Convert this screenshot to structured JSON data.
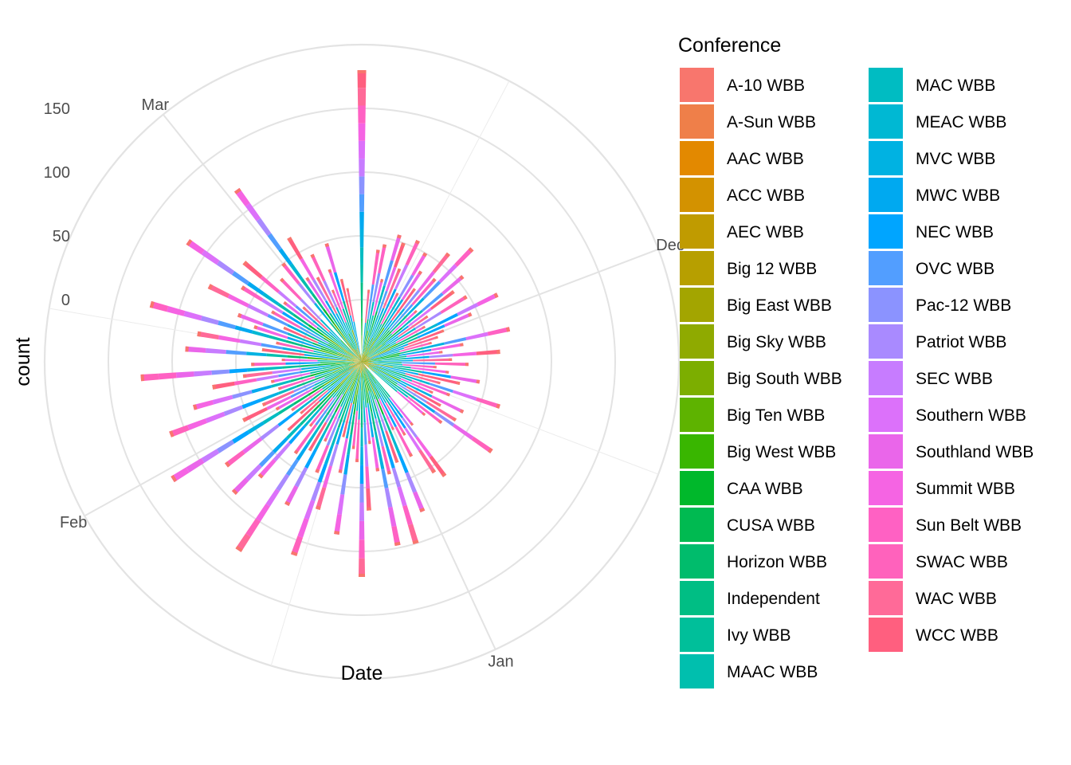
{
  "chart_data": {
    "type": "bar",
    "coord": "polar",
    "position": "stacked",
    "xlabel": "Date",
    "ylabel": "count",
    "angle_ticks": [
      "Dec",
      "Jan",
      "Feb",
      "Mar"
    ],
    "radial_ticks": [
      0,
      50,
      100,
      150
    ],
    "ylim": [
      -70,
      200
    ],
    "grid": true,
    "legend": {
      "title": "Conference",
      "placement": "right",
      "columns": 2,
      "entries": [
        {
          "name": "A-10 WBB",
          "color": "#F8766D"
        },
        {
          "name": "A-Sun WBB",
          "color": "#EF7F49"
        },
        {
          "name": "AAC WBB",
          "color": "#E38900"
        },
        {
          "name": "ACC WBB",
          "color": "#D39200"
        },
        {
          "name": "AEC WBB",
          "color": "#C09B00"
        },
        {
          "name": "Big 12 WBB",
          "color": "#B79F00"
        },
        {
          "name": "Big East WBB",
          "color": "#A3A500"
        },
        {
          "name": "Big Sky WBB",
          "color": "#8FAA00"
        },
        {
          "name": "Big South WBB",
          "color": "#7CAE00"
        },
        {
          "name": "Big Ten WBB",
          "color": "#5EB300"
        },
        {
          "name": "Big West WBB",
          "color": "#39B600"
        },
        {
          "name": "CAA WBB",
          "color": "#00B82B"
        },
        {
          "name": "CUSA WBB",
          "color": "#00BA51"
        },
        {
          "name": "Horizon WBB",
          "color": "#00BC6C"
        },
        {
          "name": "Independent",
          "color": "#00BE84"
        },
        {
          "name": "Ivy WBB",
          "color": "#00BF9A"
        },
        {
          "name": "MAAC WBB",
          "color": "#00BFAE"
        },
        {
          "name": "MAC WBB",
          "color": "#00BCC2"
        },
        {
          "name": "MEAC WBB",
          "color": "#00B8D3"
        },
        {
          "name": "MVC WBB",
          "color": "#00B2E2"
        },
        {
          "name": "MWC WBB",
          "color": "#00A9F0"
        },
        {
          "name": "NEC WBB",
          "color": "#00A5FF"
        },
        {
          "name": "OVC WBB",
          "color": "#529EFF"
        },
        {
          "name": "Pac-12 WBB",
          "color": "#8B93FF"
        },
        {
          "name": "Patriot WBB",
          "color": "#A98AFF"
        },
        {
          "name": "SEC WBB",
          "color": "#C77CFF"
        },
        {
          "name": "Southern WBB",
          "color": "#DC71FA"
        },
        {
          "name": "Southland WBB",
          "color": "#EA66EA"
        },
        {
          "name": "Summit WBB",
          "color": "#F564E3"
        },
        {
          "name": "Sun Belt WBB",
          "color": "#FF61C3"
        },
        {
          "name": "SWAC WBB",
          "color": "#FF62BC"
        },
        {
          "name": "WAC WBB",
          "color": "#FF6A98"
        },
        {
          "name": "WCC WBB",
          "color": "#FF5F7F"
        }
      ]
    },
    "day_totals": [
      {
        "date": "Nov 6",
        "count": 180
      },
      {
        "date": "Nov 8",
        "count": 8
      },
      {
        "date": "Nov 9",
        "count": 40
      },
      {
        "date": "Nov 10",
        "count": 45
      },
      {
        "date": "Nov 11",
        "count": 18
      },
      {
        "date": "Nov 12",
        "count": 55
      },
      {
        "date": "Nov 13",
        "count": 50
      },
      {
        "date": "Nov 14",
        "count": 30
      },
      {
        "date": "Nov 15",
        "count": 56
      },
      {
        "date": "Nov 16",
        "count": 12
      },
      {
        "date": "Nov 17",
        "count": 50
      },
      {
        "date": "Nov 18",
        "count": 36
      },
      {
        "date": "Nov 19",
        "count": 22
      },
      {
        "date": "Nov 20",
        "count": 60
      },
      {
        "date": "Nov 21",
        "count": 38
      },
      {
        "date": "Nov 22",
        "count": 75
      },
      {
        "date": "Nov 23",
        "count": 10
      },
      {
        "date": "Nov 24",
        "count": 55
      },
      {
        "date": "Nov 25",
        "count": 42
      },
      {
        "date": "Nov 26",
        "count": 14
      },
      {
        "date": "Nov 27",
        "count": 48
      },
      {
        "date": "Nov 28",
        "count": 8
      },
      {
        "date": "Nov 29",
        "count": 70
      },
      {
        "date": "Nov 30",
        "count": 45
      },
      {
        "date": "Dec 1",
        "count": 20
      },
      {
        "date": "Dec 2",
        "count": 14
      },
      {
        "date": "Dec 3",
        "count": 8
      },
      {
        "date": "Dec 4",
        "count": 70
      },
      {
        "date": "Dec 5",
        "count": 32
      },
      {
        "date": "Dec 6",
        "count": 15
      },
      {
        "date": "Dec 7",
        "count": 60
      },
      {
        "date": "Dec 8",
        "count": 22
      },
      {
        "date": "Dec 9",
        "count": 35
      },
      {
        "date": "Dec 10",
        "count": 10
      },
      {
        "date": "Dec 11",
        "count": 20
      },
      {
        "date": "Dec 12",
        "count": 45
      },
      {
        "date": "Dec 13",
        "count": 30
      },
      {
        "date": "Dec 14",
        "count": 15
      },
      {
        "date": "Dec 15",
        "count": 65
      },
      {
        "date": "Dec 16",
        "count": 25
      },
      {
        "date": "Dec 17",
        "count": 12
      },
      {
        "date": "Dec 18",
        "count": 40
      },
      {
        "date": "Dec 19",
        "count": 22
      },
      {
        "date": "Dec 20",
        "count": 38
      },
      {
        "date": "Dec 21",
        "count": 75
      },
      {
        "date": "Dec 22",
        "count": 30
      },
      {
        "date": "Dec 23",
        "count": 16
      },
      {
        "date": "Dec 27",
        "count": 15
      },
      {
        "date": "Dec 28",
        "count": 62
      },
      {
        "date": "Dec 29",
        "count": 55
      },
      {
        "date": "Dec 30",
        "count": 18
      },
      {
        "date": "Dec 31",
        "count": 35
      },
      {
        "date": "Jan 1",
        "count": 10
      },
      {
        "date": "Jan 2",
        "count": 78
      },
      {
        "date": "Jan 3",
        "count": 35
      },
      {
        "date": "Jan 4",
        "count": 100
      },
      {
        "date": "Jan 5",
        "count": 42
      },
      {
        "date": "Jan 6",
        "count": 98
      },
      {
        "date": "Jan 7",
        "count": 38
      },
      {
        "date": "Jan 8",
        "count": 16
      },
      {
        "date": "Jan 9",
        "count": 68
      },
      {
        "date": "Jan 10",
        "count": 120
      },
      {
        "date": "Jan 11",
        "count": 30
      },
      {
        "date": "Jan 12",
        "count": 20
      },
      {
        "date": "Jan 13",
        "count": 88
      },
      {
        "date": "Jan 14",
        "count": 40
      },
      {
        "date": "Jan 15",
        "count": 12
      },
      {
        "date": "Jan 16",
        "count": 72
      },
      {
        "date": "Jan 17",
        "count": 112
      },
      {
        "date": "Jan 18",
        "count": 45
      },
      {
        "date": "Jan 19",
        "count": 20
      },
      {
        "date": "Jan 20",
        "count": 78
      },
      {
        "date": "Jan 21",
        "count": 32
      },
      {
        "date": "Jan 22",
        "count": 128
      },
      {
        "date": "Jan 23",
        "count": 40
      },
      {
        "date": "Jan 24",
        "count": 16
      },
      {
        "date": "Jan 25",
        "count": 72
      },
      {
        "date": "Jan 26",
        "count": 95
      },
      {
        "date": "Jan 27",
        "count": 30
      },
      {
        "date": "Jan 28",
        "count": 14
      },
      {
        "date": "Jan 29",
        "count": 85
      },
      {
        "date": "Jan 30",
        "count": 18
      },
      {
        "date": "Jan 31",
        "count": 126
      },
      {
        "date": "Feb 1",
        "count": 28
      },
      {
        "date": "Feb 2",
        "count": 55
      },
      {
        "date": "Feb 3",
        "count": 36
      },
      {
        "date": "Feb 4",
        "count": 112
      },
      {
        "date": "Feb 5",
        "count": 20
      },
      {
        "date": "Feb 6",
        "count": 88
      },
      {
        "date": "Feb 7",
        "count": 24
      },
      {
        "date": "Feb 8",
        "count": 70
      },
      {
        "date": "Feb 9",
        "count": 45
      },
      {
        "date": "Feb 10",
        "count": 125
      },
      {
        "date": "Feb 11",
        "count": 38
      },
      {
        "date": "Feb 12",
        "count": 14
      },
      {
        "date": "Feb 13",
        "count": 90
      },
      {
        "date": "Feb 14",
        "count": 30
      },
      {
        "date": "Feb 15",
        "count": 82
      },
      {
        "date": "Feb 16",
        "count": 20
      },
      {
        "date": "Feb 17",
        "count": 123
      },
      {
        "date": "Feb 18",
        "count": 40
      },
      {
        "date": "Feb 19",
        "count": 55
      },
      {
        "date": "Feb 20",
        "count": 18
      },
      {
        "date": "Feb 21",
        "count": 85
      },
      {
        "date": "Feb 22",
        "count": 32
      },
      {
        "date": "Feb 23",
        "count": 62
      },
      {
        "date": "Feb 24",
        "count": 117
      },
      {
        "date": "Feb 25",
        "count": 28
      },
      {
        "date": "Feb 26",
        "count": 72
      },
      {
        "date": "Feb 27",
        "count": 14
      },
      {
        "date": "Feb 28",
        "count": 42
      },
      {
        "date": "Mar 1",
        "count": 50
      },
      {
        "date": "Mar 2",
        "count": 118
      },
      {
        "date": "Mar 3",
        "count": 30
      },
      {
        "date": "Mar 4",
        "count": 64
      },
      {
        "date": "Mar 5",
        "count": 26
      },
      {
        "date": "Mar 6",
        "count": 44
      },
      {
        "date": "Mar 7",
        "count": 12
      },
      {
        "date": "Mar 8",
        "count": 28
      },
      {
        "date": "Mar 9",
        "count": 48
      },
      {
        "date": "Mar 10",
        "count": 18
      },
      {
        "date": "Mar 11",
        "count": 10
      }
    ]
  }
}
